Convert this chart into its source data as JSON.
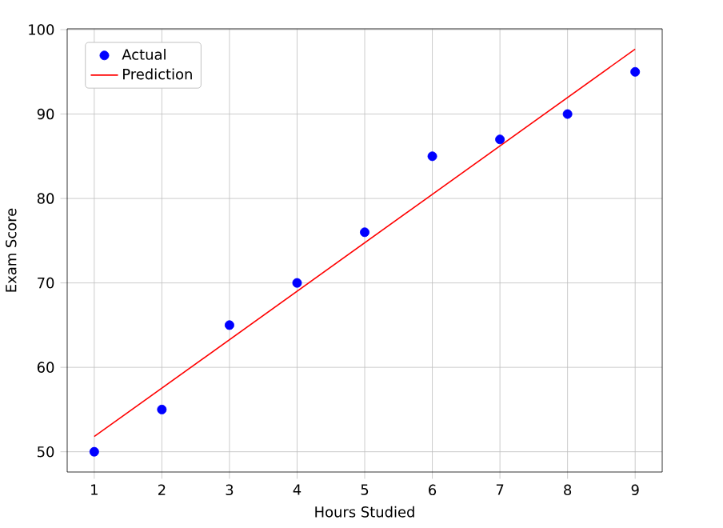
{
  "chart_data": {
    "type": "scatter",
    "xlabel": "Hours Studied",
    "ylabel": "Exam Score",
    "x": [
      1,
      2,
      3,
      4,
      5,
      6,
      7,
      8,
      9
    ],
    "series": [
      {
        "name": "Actual",
        "color": "#0000ff",
        "values": [
          50,
          55,
          65,
          70,
          76,
          85,
          87,
          90,
          95
        ]
      },
      {
        "name": "Prediction",
        "type": "line",
        "color": "#ff0000",
        "marker": "none",
        "x": [
          1,
          9
        ],
        "values": [
          51.8,
          97.7
        ]
      }
    ],
    "xlim": [
      0.6,
      9.4
    ],
    "ylim": [
      47.6,
      100.1
    ],
    "xticks": [
      1,
      2,
      3,
      4,
      5,
      6,
      7,
      8,
      9
    ],
    "yticks": [
      50,
      60,
      70,
      80,
      90,
      100
    ],
    "grid": true,
    "legend": "top left",
    "marker": "circle"
  }
}
